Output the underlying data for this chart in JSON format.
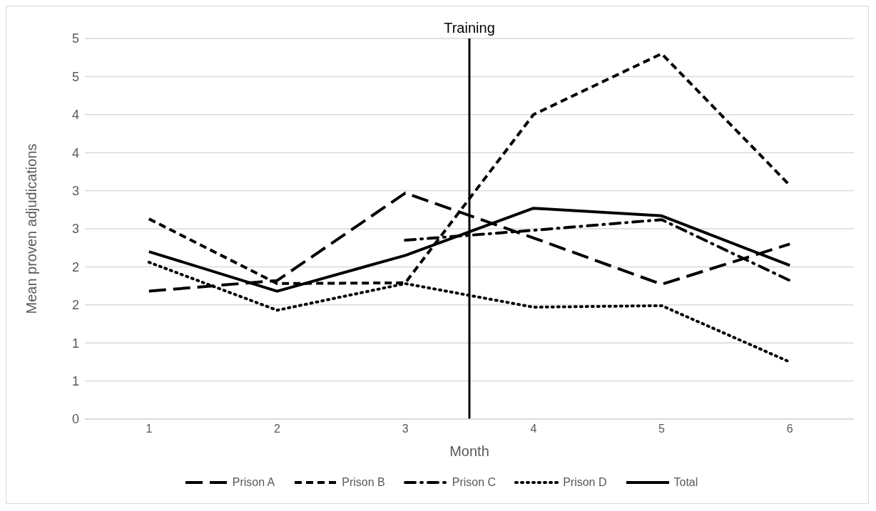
{
  "chart_data": {
    "type": "line",
    "xlabel": "Month",
    "ylabel": "Mean proven adjudications",
    "x": [
      1,
      2,
      3,
      4,
      5,
      6
    ],
    "xlim": [
      0.5,
      6.5
    ],
    "xticks": [
      1,
      2,
      3,
      4,
      5,
      6
    ],
    "ylim": [
      0,
      5
    ],
    "yticks": [
      {
        "value": 0,
        "label": "0"
      },
      {
        "value": 0.5,
        "label": "1"
      },
      {
        "value": 1,
        "label": "1"
      },
      {
        "value": 1.5,
        "label": "2"
      },
      {
        "value": 2,
        "label": "2"
      },
      {
        "value": 2.5,
        "label": "3"
      },
      {
        "value": 3,
        "label": "3"
      },
      {
        "value": 3.5,
        "label": "4"
      },
      {
        "value": 4,
        "label": "4"
      },
      {
        "value": 4.5,
        "label": "5"
      },
      {
        "value": 5,
        "label": "5"
      }
    ],
    "grid": "y",
    "legend": "bottom",
    "marker": "none",
    "series": [
      {
        "name": "Prison A",
        "color": "#000000",
        "line_style": "longdash",
        "values": [
          1.68,
          1.82,
          2.97,
          2.38,
          1.77,
          2.3
        ]
      },
      {
        "name": "Prison B",
        "color": "#000000",
        "line_style": "dashed",
        "values": [
          2.63,
          1.78,
          1.79,
          4.0,
          4.8,
          3.07
        ]
      },
      {
        "name": "Prison C",
        "color": "#000000",
        "line_style": "dashdot",
        "values": [
          null,
          null,
          2.35,
          2.48,
          2.62,
          1.82
        ]
      },
      {
        "name": "Prison D",
        "color": "#000000",
        "line_style": "dotted",
        "values": [
          2.06,
          1.43,
          1.78,
          1.47,
          1.49,
          0.75
        ]
      },
      {
        "name": "Total",
        "color": "#000000",
        "line_style": "solid",
        "values": [
          2.2,
          1.68,
          2.15,
          2.77,
          2.67,
          2.02
        ]
      }
    ],
    "ref_lines": [
      {
        "axis": "x",
        "value": 3.5,
        "label": "Training",
        "color": "#000000"
      }
    ]
  }
}
